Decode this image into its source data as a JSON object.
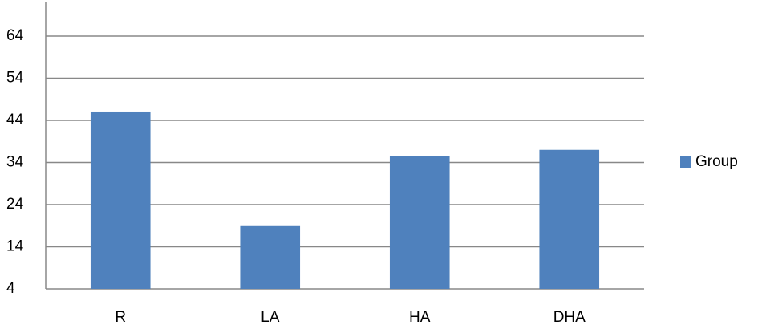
{
  "chart_data": {
    "type": "bar",
    "categories": [
      "R",
      "LA",
      "HA",
      "DHA"
    ],
    "series": [
      {
        "name": "Group",
        "color": "#4f81bd",
        "values": [
          46.1,
          18.9,
          35.6,
          37
        ]
      }
    ],
    "ylim": [
      4,
      72
    ],
    "yticks": [
      4,
      14,
      24,
      34,
      44,
      54,
      64
    ],
    "grid": true,
    "legend": "right"
  }
}
